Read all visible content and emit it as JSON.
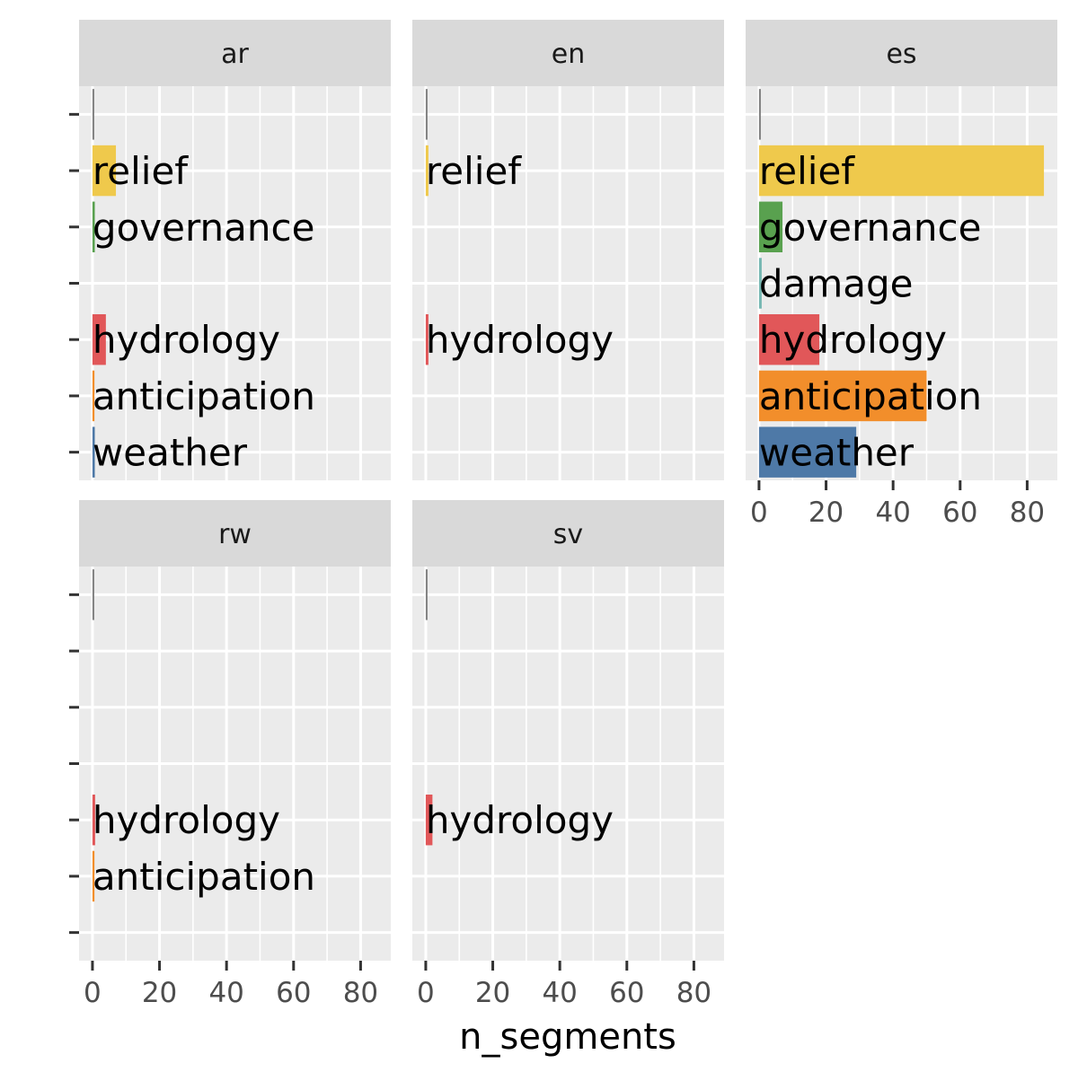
{
  "chart_data": {
    "type": "bar",
    "orientation": "horizontal",
    "layout": "facet_wrap",
    "xlabel": "n_segments",
    "ylabel": "",
    "xlim": [
      -4,
      89
    ],
    "x_ticks": [
      0,
      20,
      40,
      60,
      80
    ],
    "grid": true,
    "legend": "none",
    "categories": [
      "",
      "relief",
      "governance",
      "damage",
      "hydrology",
      "anticipation",
      "weather"
    ],
    "category_colors": {
      "": "#808080",
      "relief": "#EFC94C",
      "governance": "#59A14F",
      "damage": "#76B7B2",
      "hydrology": "#E15759",
      "anticipation": "#F28E2B",
      "weather": "#4E79A7"
    },
    "panels": [
      {
        "name": "ar",
        "values": [
          {
            "category": "",
            "value": 0.5
          },
          {
            "category": "relief",
            "value": 7
          },
          {
            "category": "governance",
            "value": 0.7
          },
          {
            "category": "hydrology",
            "value": 4
          },
          {
            "category": "anticipation",
            "value": 0.6
          },
          {
            "category": "weather",
            "value": 0.7
          }
        ]
      },
      {
        "name": "en",
        "values": [
          {
            "category": "",
            "value": 0.5
          },
          {
            "category": "relief",
            "value": 0.8
          },
          {
            "category": "hydrology",
            "value": 0.8
          }
        ]
      },
      {
        "name": "es",
        "values": [
          {
            "category": "",
            "value": 0.5
          },
          {
            "category": "relief",
            "value": 85
          },
          {
            "category": "governance",
            "value": 7
          },
          {
            "category": "damage",
            "value": 0.8
          },
          {
            "category": "hydrology",
            "value": 18
          },
          {
            "category": "anticipation",
            "value": 50
          },
          {
            "category": "weather",
            "value": 29
          }
        ]
      },
      {
        "name": "rw",
        "values": [
          {
            "category": "",
            "value": 0.5
          },
          {
            "category": "hydrology",
            "value": 0.8
          },
          {
            "category": "anticipation",
            "value": 0.6
          }
        ]
      },
      {
        "name": "sv",
        "values": [
          {
            "category": "",
            "value": 0.5
          },
          {
            "category": "hydrology",
            "value": 2
          }
        ]
      }
    ]
  }
}
